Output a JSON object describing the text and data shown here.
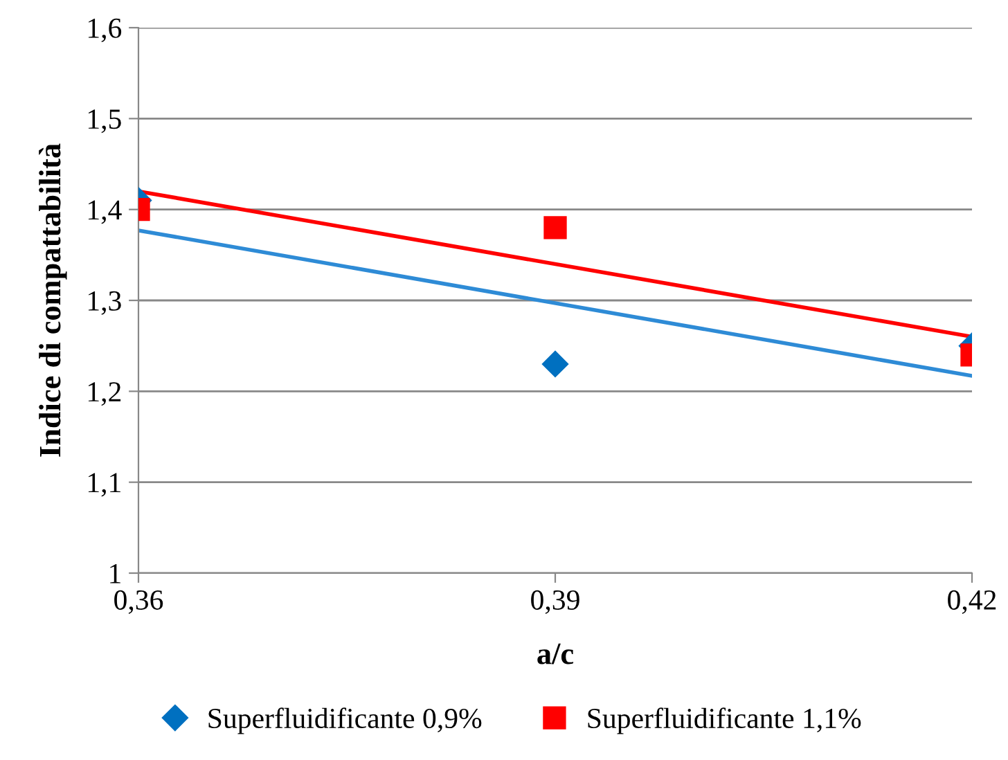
{
  "chart_data": {
    "type": "scatter",
    "xlabel": "a/c",
    "ylabel": "Indice di compattabilità",
    "xlim": [
      0.36,
      0.42
    ],
    "xticks": [
      {
        "value": 0.36,
        "label": "0,36"
      },
      {
        "value": 0.39,
        "label": "0,39"
      },
      {
        "value": 0.42,
        "label": "0,42"
      }
    ],
    "ylim": [
      1,
      1.6
    ],
    "yticks": [
      {
        "value": 1,
        "label": "1"
      },
      {
        "value": 1.1,
        "label": "1,1"
      },
      {
        "value": 1.2,
        "label": "1,2"
      },
      {
        "value": 1.3,
        "label": "1,3"
      },
      {
        "value": 1.4,
        "label": "1,4"
      },
      {
        "value": 1.5,
        "label": "1,5"
      },
      {
        "value": 1.6,
        "label": "1,6"
      }
    ],
    "grid": "y",
    "legend": "bottom",
    "series": [
      {
        "name": "Superfluidificante 0,9%",
        "color": "#0070c0",
        "marker": "diamond",
        "x": [
          0.36,
          0.39,
          0.42
        ],
        "values": [
          1.41,
          1.23,
          1.25
        ]
      },
      {
        "name": "Superfluidificante 1,1%",
        "color": "#ff0000",
        "marker": "square",
        "x": [
          0.36,
          0.39,
          0.42
        ],
        "values": [
          1.4,
          1.38,
          1.24
        ]
      },
      {
        "type": "line",
        "color": "#2e8bd6",
        "marker": "none",
        "x": [
          0.36,
          0.42
        ],
        "values": [
          1.377,
          1.217
        ]
      },
      {
        "type": "line",
        "color": "#ff0000",
        "marker": "none",
        "x": [
          0.36,
          0.42
        ],
        "values": [
          1.42,
          1.26
        ]
      }
    ]
  }
}
